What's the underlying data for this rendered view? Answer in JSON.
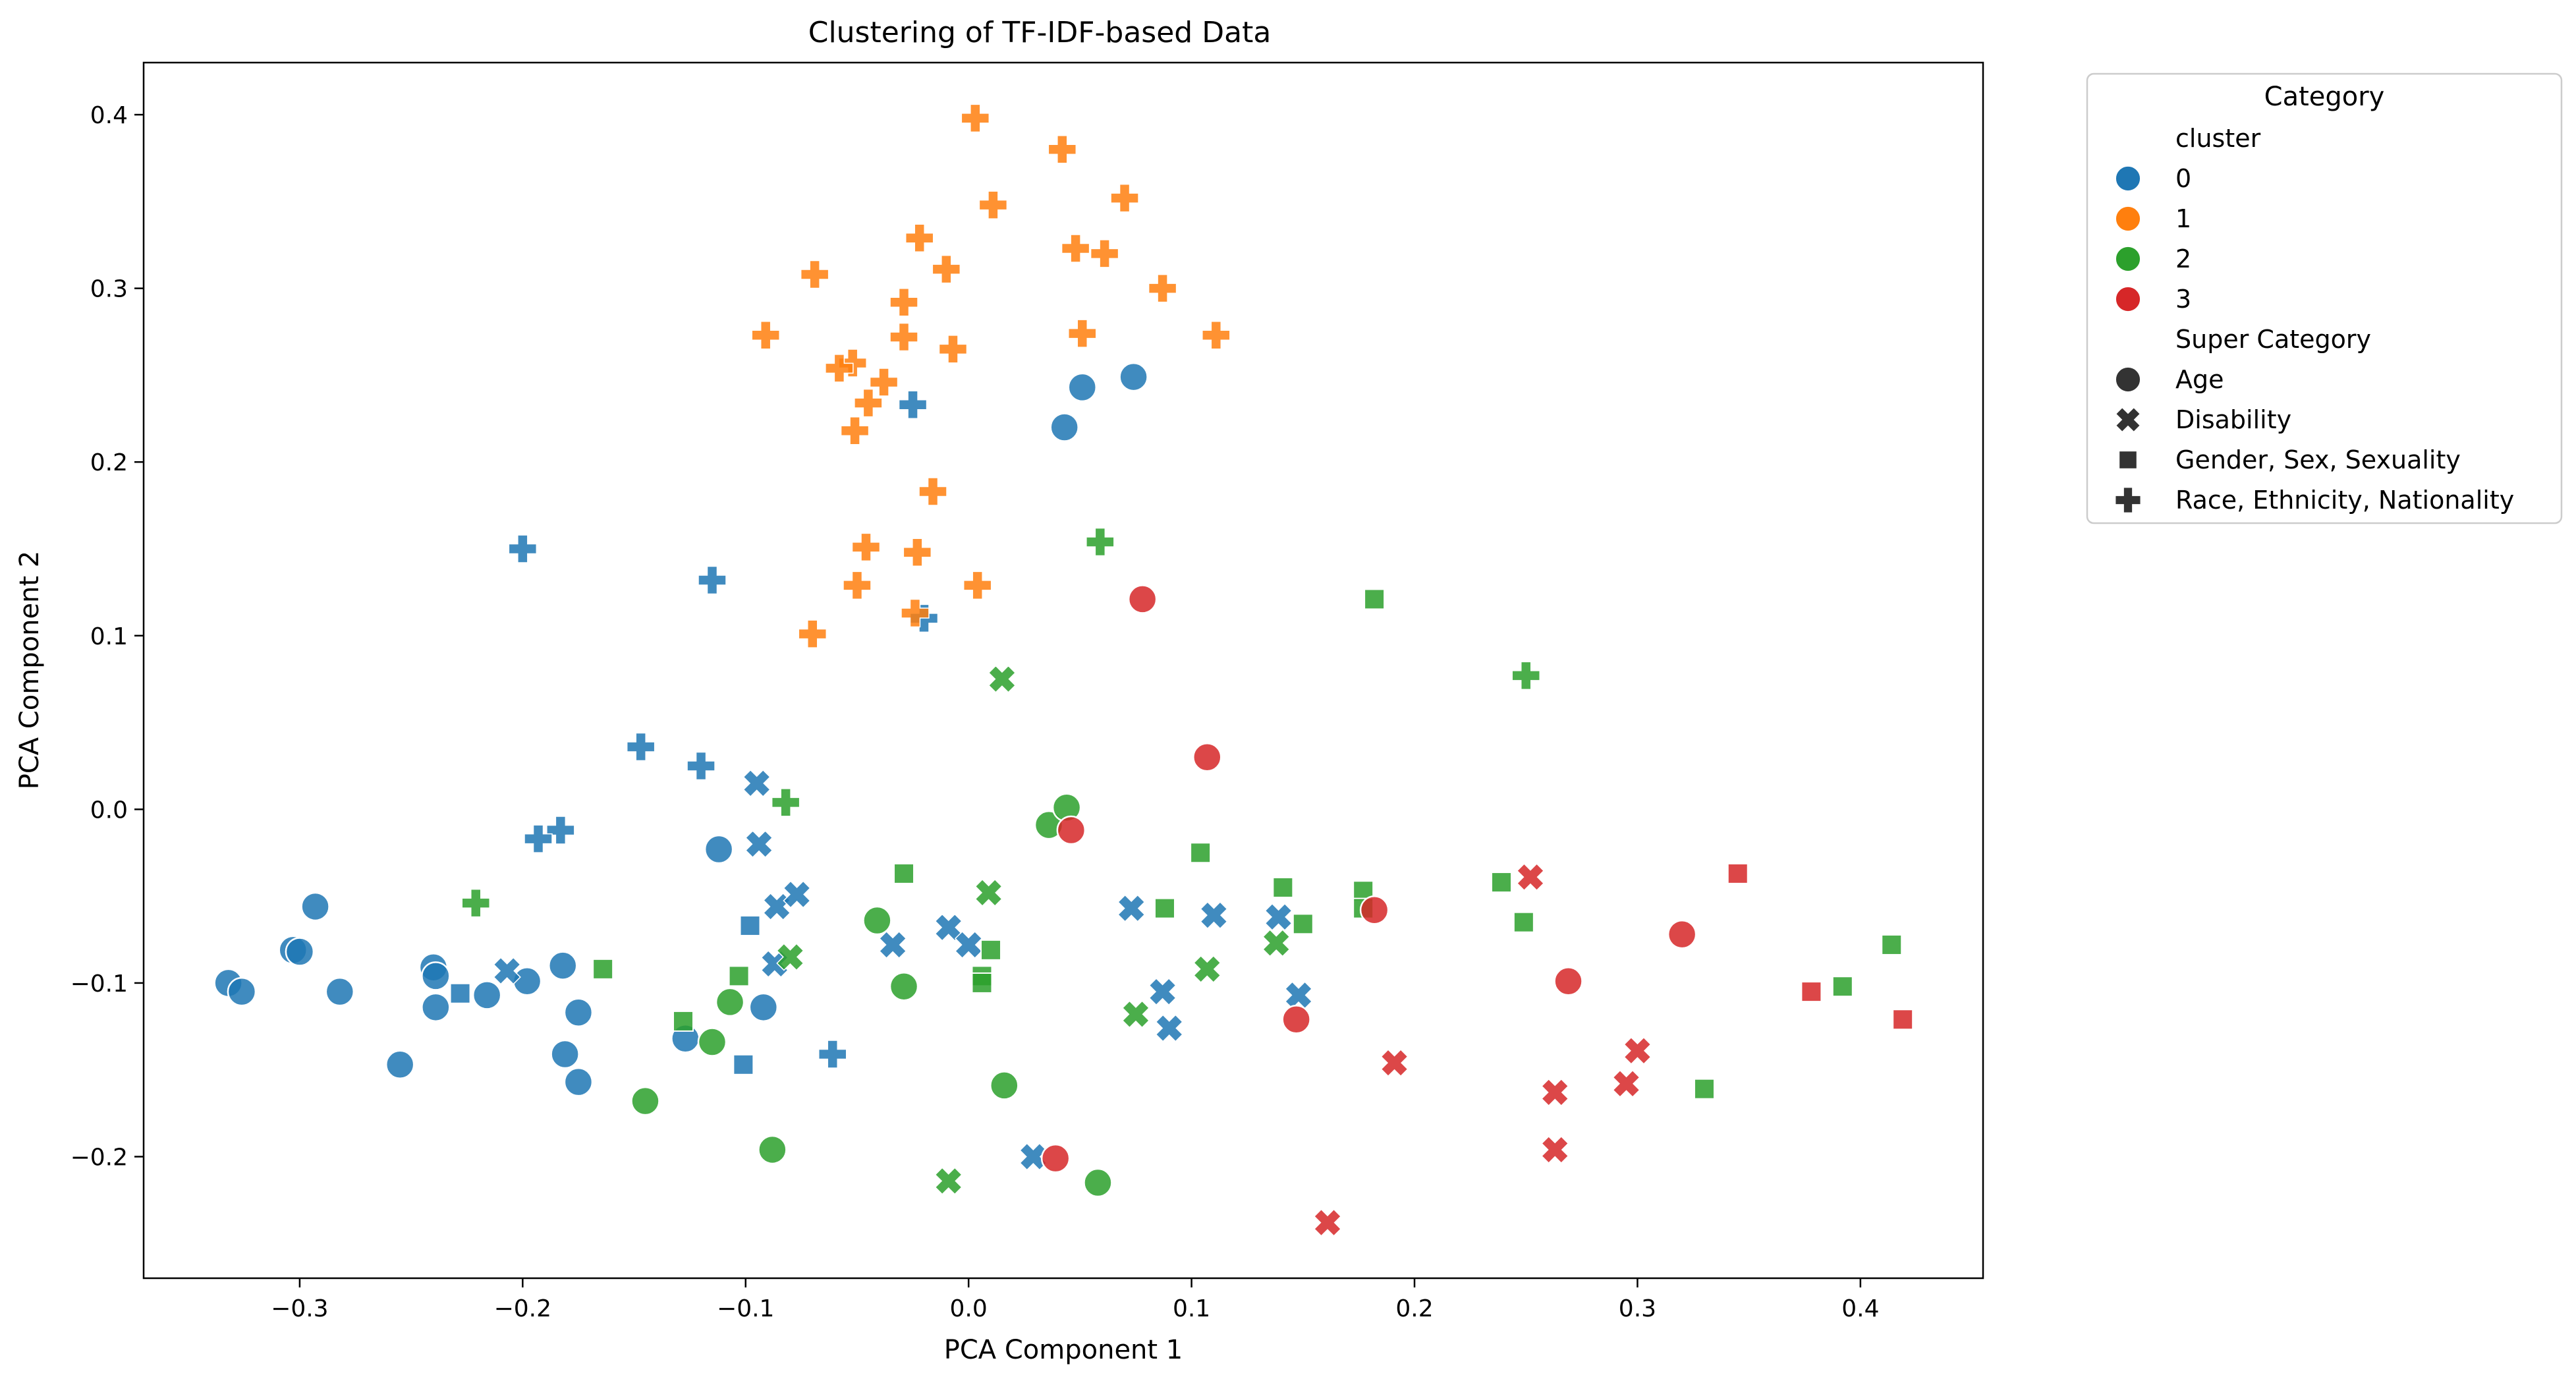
{
  "chart_data": {
    "type": "scatter",
    "title": "Clustering of TF-IDF-based Data",
    "xlabel": "PCA Component 1",
    "ylabel": "PCA Component 2",
    "xlim": [
      -0.37,
      0.455
    ],
    "ylim": [
      -0.27,
      0.43
    ],
    "xticks": [
      -0.3,
      -0.2,
      -0.1,
      0.0,
      0.1,
      0.2,
      0.3,
      0.4
    ],
    "xtick_labels": [
      "−0.3",
      "−0.2",
      "−0.1",
      "0.0",
      "0.1",
      "0.2",
      "0.3",
      "0.4"
    ],
    "yticks": [
      -0.2,
      -0.1,
      0.0,
      0.1,
      0.2,
      0.3,
      0.4
    ],
    "ytick_labels": [
      "−0.2",
      "−0.1",
      "0.0",
      "0.1",
      "0.2",
      "0.3",
      "0.4"
    ],
    "grid": false,
    "legend": {
      "title": "Category",
      "placement": "outside-top-right",
      "hue_title": "cluster",
      "clusters": [
        {
          "label": "0",
          "color": "#1f77b4"
        },
        {
          "label": "1",
          "color": "#ff7f0e"
        },
        {
          "label": "2",
          "color": "#2ca02c"
        },
        {
          "label": "3",
          "color": "#d62728"
        }
      ],
      "style_title": "Super Category",
      "styles": [
        {
          "label": "Age",
          "marker": "circle"
        },
        {
          "label": "Disability",
          "marker": "x"
        },
        {
          "label": "Gender, Sex, Sexuality",
          "marker": "square"
        },
        {
          "label": "Race, Ethnicity, Nationality",
          "marker": "plus"
        }
      ]
    },
    "series": [
      {
        "name": "cluster 0",
        "color": "#1f77b4",
        "points": [
          {
            "x": -0.332,
            "y": -0.1,
            "m": "circle"
          },
          {
            "x": -0.326,
            "y": -0.105,
            "m": "circle"
          },
          {
            "x": -0.303,
            "y": -0.081,
            "m": "circle"
          },
          {
            "x": -0.3,
            "y": -0.082,
            "m": "circle"
          },
          {
            "x": -0.293,
            "y": -0.056,
            "m": "circle"
          },
          {
            "x": -0.282,
            "y": -0.105,
            "m": "circle"
          },
          {
            "x": -0.255,
            "y": -0.147,
            "m": "circle"
          },
          {
            "x": -0.24,
            "y": -0.091,
            "m": "circle"
          },
          {
            "x": -0.239,
            "y": -0.096,
            "m": "circle"
          },
          {
            "x": -0.239,
            "y": -0.114,
            "m": "circle"
          },
          {
            "x": -0.216,
            "y": -0.107,
            "m": "circle"
          },
          {
            "x": -0.198,
            "y": -0.099,
            "m": "circle"
          },
          {
            "x": -0.182,
            "y": -0.09,
            "m": "circle"
          },
          {
            "x": -0.181,
            "y": -0.141,
            "m": "circle"
          },
          {
            "x": -0.175,
            "y": -0.117,
            "m": "circle"
          },
          {
            "x": -0.175,
            "y": -0.157,
            "m": "circle"
          },
          {
            "x": -0.127,
            "y": -0.132,
            "m": "circle"
          },
          {
            "x": -0.112,
            "y": -0.023,
            "m": "circle"
          },
          {
            "x": -0.092,
            "y": -0.114,
            "m": "circle"
          },
          {
            "x": 0.043,
            "y": 0.22,
            "m": "circle"
          },
          {
            "x": 0.051,
            "y": 0.243,
            "m": "circle"
          },
          {
            "x": 0.074,
            "y": 0.249,
            "m": "circle"
          },
          {
            "x": -0.207,
            "y": -0.093,
            "m": "x"
          },
          {
            "x": -0.095,
            "y": 0.015,
            "m": "x"
          },
          {
            "x": -0.094,
            "y": -0.02,
            "m": "x"
          },
          {
            "x": -0.086,
            "y": -0.056,
            "m": "x"
          },
          {
            "x": -0.087,
            "y": -0.089,
            "m": "x"
          },
          {
            "x": -0.077,
            "y": -0.049,
            "m": "x"
          },
          {
            "x": -0.034,
            "y": -0.078,
            "m": "x"
          },
          {
            "x": -0.009,
            "y": -0.068,
            "m": "x"
          },
          {
            "x": 0.0,
            "y": -0.078,
            "m": "x"
          },
          {
            "x": 0.029,
            "y": -0.2,
            "m": "x"
          },
          {
            "x": 0.073,
            "y": -0.057,
            "m": "x"
          },
          {
            "x": 0.087,
            "y": -0.105,
            "m": "x"
          },
          {
            "x": 0.09,
            "y": -0.126,
            "m": "x"
          },
          {
            "x": 0.11,
            "y": -0.061,
            "m": "x"
          },
          {
            "x": 0.139,
            "y": -0.062,
            "m": "x"
          },
          {
            "x": 0.148,
            "y": -0.107,
            "m": "x"
          },
          {
            "x": -0.228,
            "y": -0.106,
            "m": "square"
          },
          {
            "x": -0.098,
            "y": -0.067,
            "m": "square"
          },
          {
            "x": -0.101,
            "y": -0.147,
            "m": "square"
          },
          {
            "x": -0.2,
            "y": 0.15,
            "m": "plus"
          },
          {
            "x": -0.115,
            "y": 0.132,
            "m": "plus"
          },
          {
            "x": -0.147,
            "y": 0.036,
            "m": "plus"
          },
          {
            "x": -0.12,
            "y": 0.025,
            "m": "plus"
          },
          {
            "x": -0.183,
            "y": -0.012,
            "m": "plus"
          },
          {
            "x": -0.193,
            "y": -0.017,
            "m": "plus"
          },
          {
            "x": -0.025,
            "y": 0.233,
            "m": "plus"
          },
          {
            "x": -0.02,
            "y": 0.11,
            "m": "plus"
          },
          {
            "x": -0.061,
            "y": -0.141,
            "m": "plus"
          }
        ]
      },
      {
        "name": "cluster 1",
        "color": "#ff7f0e",
        "points": [
          {
            "x": 0.003,
            "y": 0.398,
            "m": "plus"
          },
          {
            "x": 0.042,
            "y": 0.38,
            "m": "plus"
          },
          {
            "x": 0.07,
            "y": 0.352,
            "m": "plus"
          },
          {
            "x": 0.011,
            "y": 0.348,
            "m": "plus"
          },
          {
            "x": -0.022,
            "y": 0.329,
            "m": "plus"
          },
          {
            "x": 0.048,
            "y": 0.323,
            "m": "plus"
          },
          {
            "x": 0.061,
            "y": 0.32,
            "m": "plus"
          },
          {
            "x": -0.01,
            "y": 0.311,
            "m": "plus"
          },
          {
            "x": -0.069,
            "y": 0.308,
            "m": "plus"
          },
          {
            "x": 0.087,
            "y": 0.3,
            "m": "plus"
          },
          {
            "x": -0.029,
            "y": 0.292,
            "m": "plus"
          },
          {
            "x": -0.091,
            "y": 0.273,
            "m": "plus"
          },
          {
            "x": -0.029,
            "y": 0.272,
            "m": "plus"
          },
          {
            "x": 0.051,
            "y": 0.274,
            "m": "plus"
          },
          {
            "x": 0.111,
            "y": 0.273,
            "m": "plus"
          },
          {
            "x": -0.007,
            "y": 0.265,
            "m": "plus"
          },
          {
            "x": -0.052,
            "y": 0.257,
            "m": "plus"
          },
          {
            "x": -0.058,
            "y": 0.254,
            "m": "plus"
          },
          {
            "x": -0.038,
            "y": 0.246,
            "m": "plus"
          },
          {
            "x": -0.045,
            "y": 0.234,
            "m": "plus"
          },
          {
            "x": -0.051,
            "y": 0.218,
            "m": "plus"
          },
          {
            "x": -0.016,
            "y": 0.183,
            "m": "plus"
          },
          {
            "x": -0.046,
            "y": 0.151,
            "m": "plus"
          },
          {
            "x": -0.023,
            "y": 0.148,
            "m": "plus"
          },
          {
            "x": -0.05,
            "y": 0.129,
            "m": "plus"
          },
          {
            "x": 0.004,
            "y": 0.129,
            "m": "plus"
          },
          {
            "x": -0.024,
            "y": 0.113,
            "m": "plus"
          },
          {
            "x": -0.07,
            "y": 0.101,
            "m": "plus"
          }
        ]
      },
      {
        "name": "cluster 2",
        "color": "#2ca02c",
        "points": [
          {
            "x": -0.145,
            "y": -0.168,
            "m": "circle"
          },
          {
            "x": -0.115,
            "y": -0.134,
            "m": "circle"
          },
          {
            "x": -0.107,
            "y": -0.111,
            "m": "circle"
          },
          {
            "x": -0.088,
            "y": -0.196,
            "m": "circle"
          },
          {
            "x": -0.041,
            "y": -0.064,
            "m": "circle"
          },
          {
            "x": -0.029,
            "y": -0.102,
            "m": "circle"
          },
          {
            "x": 0.016,
            "y": -0.159,
            "m": "circle"
          },
          {
            "x": 0.036,
            "y": -0.009,
            "m": "circle"
          },
          {
            "x": 0.044,
            "y": 0.001,
            "m": "circle"
          },
          {
            "x": 0.058,
            "y": -0.215,
            "m": "circle"
          },
          {
            "x": 0.015,
            "y": 0.075,
            "m": "x"
          },
          {
            "x": 0.009,
            "y": -0.048,
            "m": "x"
          },
          {
            "x": -0.08,
            "y": -0.085,
            "m": "x"
          },
          {
            "x": -0.009,
            "y": -0.214,
            "m": "x"
          },
          {
            "x": 0.075,
            "y": -0.118,
            "m": "x"
          },
          {
            "x": 0.107,
            "y": -0.092,
            "m": "x"
          },
          {
            "x": 0.138,
            "y": -0.077,
            "m": "x"
          },
          {
            "x": -0.164,
            "y": -0.092,
            "m": "square"
          },
          {
            "x": -0.128,
            "y": -0.122,
            "m": "square"
          },
          {
            "x": -0.103,
            "y": -0.096,
            "m": "square"
          },
          {
            "x": -0.029,
            "y": -0.037,
            "m": "square"
          },
          {
            "x": 0.006,
            "y": -0.096,
            "m": "square"
          },
          {
            "x": 0.006,
            "y": -0.1,
            "m": "square"
          },
          {
            "x": 0.01,
            "y": -0.081,
            "m": "square"
          },
          {
            "x": 0.088,
            "y": -0.057,
            "m": "square"
          },
          {
            "x": 0.104,
            "y": -0.025,
            "m": "square"
          },
          {
            "x": 0.141,
            "y": -0.045,
            "m": "square"
          },
          {
            "x": 0.15,
            "y": -0.066,
            "m": "square"
          },
          {
            "x": 0.177,
            "y": -0.047,
            "m": "square"
          },
          {
            "x": 0.177,
            "y": -0.057,
            "m": "square"
          },
          {
            "x": 0.182,
            "y": 0.121,
            "m": "square"
          },
          {
            "x": 0.239,
            "y": -0.042,
            "m": "square"
          },
          {
            "x": 0.249,
            "y": -0.065,
            "m": "square"
          },
          {
            "x": 0.33,
            "y": -0.161,
            "m": "square"
          },
          {
            "x": 0.392,
            "y": -0.102,
            "m": "square"
          },
          {
            "x": 0.414,
            "y": -0.078,
            "m": "square"
          },
          {
            "x": 0.059,
            "y": 0.154,
            "m": "plus"
          },
          {
            "x": 0.25,
            "y": 0.077,
            "m": "plus"
          },
          {
            "x": -0.221,
            "y": -0.054,
            "m": "plus"
          },
          {
            "x": -0.082,
            "y": 0.004,
            "m": "plus"
          }
        ]
      },
      {
        "name": "cluster 3",
        "color": "#d62728",
        "points": [
          {
            "x": 0.078,
            "y": 0.121,
            "m": "circle"
          },
          {
            "x": 0.107,
            "y": 0.03,
            "m": "circle"
          },
          {
            "x": 0.046,
            "y": -0.012,
            "m": "circle"
          },
          {
            "x": 0.182,
            "y": -0.058,
            "m": "circle"
          },
          {
            "x": 0.147,
            "y": -0.121,
            "m": "circle"
          },
          {
            "x": 0.039,
            "y": -0.201,
            "m": "circle"
          },
          {
            "x": 0.269,
            "y": -0.099,
            "m": "circle"
          },
          {
            "x": 0.32,
            "y": -0.072,
            "m": "circle"
          },
          {
            "x": 0.252,
            "y": -0.039,
            "m": "x"
          },
          {
            "x": 0.191,
            "y": -0.146,
            "m": "x"
          },
          {
            "x": 0.263,
            "y": -0.163,
            "m": "x"
          },
          {
            "x": 0.263,
            "y": -0.196,
            "m": "x"
          },
          {
            "x": 0.3,
            "y": -0.139,
            "m": "x"
          },
          {
            "x": 0.295,
            "y": -0.158,
            "m": "x"
          },
          {
            "x": 0.161,
            "y": -0.238,
            "m": "x"
          },
          {
            "x": 0.345,
            "y": -0.037,
            "m": "square"
          },
          {
            "x": 0.378,
            "y": -0.105,
            "m": "square"
          },
          {
            "x": 0.419,
            "y": -0.121,
            "m": "square"
          }
        ]
      }
    ]
  }
}
